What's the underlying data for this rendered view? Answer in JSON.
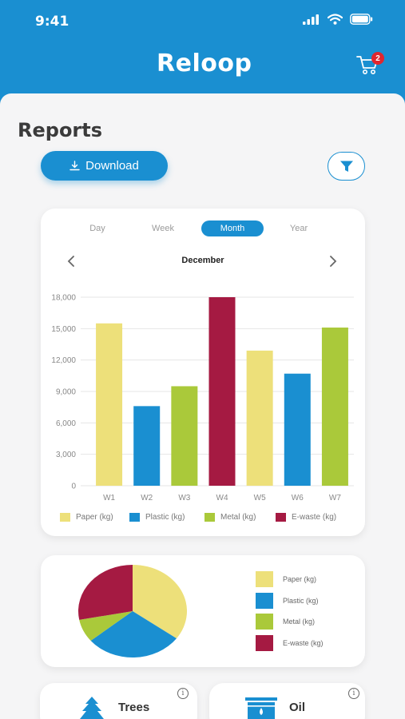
{
  "status": {
    "time": "9:41"
  },
  "app": {
    "logo": "Reloop",
    "cart_count": "2"
  },
  "page": {
    "title": "Reports",
    "download_label": "Download"
  },
  "tabs": [
    "Day",
    "Week",
    "Month",
    "Year"
  ],
  "active_tab": "Month",
  "period": {
    "label": "December"
  },
  "colors": {
    "primary": "#1a8fd1",
    "paper": "#ede07a",
    "plastic": "#1a8fd1",
    "metal": "#aac93a",
    "ewaste": "#a51a42",
    "badge": "#e0262f"
  },
  "chart_data": {
    "type": "bar",
    "categories": [
      "W1",
      "W2",
      "W3",
      "W4",
      "W5",
      "W6",
      "W7"
    ],
    "values": [
      15500,
      7600,
      9500,
      18000,
      12900,
      10700,
      15100
    ],
    "bar_series": [
      "Paper (kg)",
      "Plastic (kg)",
      "Metal (kg)",
      "E-waste (kg)",
      "Paper (kg)",
      "Plastic (kg)",
      "Metal (kg)"
    ],
    "yticks": [
      "0",
      "3,000",
      "6,000",
      "9,000",
      "12,000",
      "15,000",
      "18,000"
    ],
    "ylim": [
      0,
      18000
    ],
    "grid": true,
    "legend": [
      "Paper (kg)",
      "Plastic (kg)",
      "Metal (kg)",
      "E-waste (kg)"
    ]
  },
  "pie_data": {
    "type": "pie",
    "labels": [
      "Paper (kg)",
      "Plastic (kg)",
      "Metal (kg)",
      "E-waste (kg)"
    ],
    "values": [
      35,
      29,
      8,
      28
    ]
  },
  "summary_cards": [
    {
      "title": "Trees",
      "info": "i"
    },
    {
      "title": "Oil",
      "info": "i"
    }
  ]
}
